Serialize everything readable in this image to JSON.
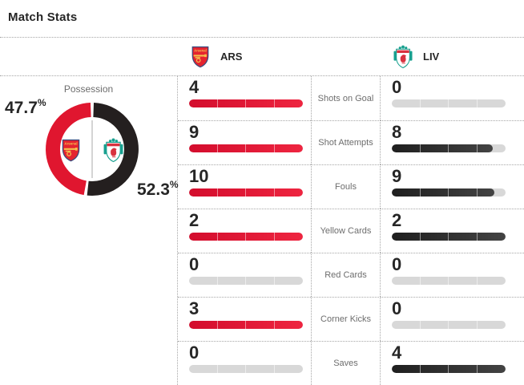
{
  "page": {
    "title": "Match Stats"
  },
  "teams": {
    "home": {
      "abbr": "ARS",
      "name": "Arsenal",
      "color": "#d30d2d"
    },
    "away": {
      "abbr": "LIV",
      "name": "Liverpool",
      "color": "#2b2b2b"
    }
  },
  "possession": {
    "label": "Possession",
    "home_pct": "47.7",
    "away_pct": "52.3",
    "pct_symbol": "%"
  },
  "stats": {
    "rows": [
      {
        "label": "Shots on Goal",
        "home": 4,
        "away": 0
      },
      {
        "label": "Shot Attempts",
        "home": 9,
        "away": 8
      },
      {
        "label": "Fouls",
        "home": 10,
        "away": 9
      },
      {
        "label": "Yellow Cards",
        "home": 2,
        "away": 2
      },
      {
        "label": "Red Cards",
        "home": 0,
        "away": 0
      },
      {
        "label": "Corner Kicks",
        "home": 3,
        "away": 0
      },
      {
        "label": "Saves",
        "home": 0,
        "away": 4
      }
    ]
  },
  "colors": {
    "home_bar": "#d30d2d",
    "away_bar": "#2b2b2b",
    "bar_track": "#d8d8d8",
    "donut_home": "#e0162f",
    "donut_away": "#241f1f",
    "text_dark": "#262626",
    "text_gray": "#6d6d6d",
    "dotted_border": "#a6a6a6"
  },
  "chart_data": [
    {
      "type": "pie",
      "style": "donut",
      "title": "Possession",
      "labels": [
        "ARS",
        "LIV"
      ],
      "values": [
        47.7,
        52.3
      ],
      "colors": [
        "#e0162f",
        "#241f1f"
      ]
    },
    {
      "type": "bar",
      "title": "Match Stats",
      "categories": [
        "Shots on Goal",
        "Shot Attempts",
        "Fouls",
        "Yellow Cards",
        "Red Cards",
        "Corner Kicks",
        "Saves"
      ],
      "series": [
        {
          "name": "ARS",
          "values": [
            4,
            9,
            10,
            2,
            0,
            3,
            0
          ]
        },
        {
          "name": "LIV",
          "values": [
            0,
            8,
            9,
            2,
            0,
            0,
            4
          ]
        }
      ],
      "note": "each row's bars are scaled relative to the row maximum"
    }
  ]
}
